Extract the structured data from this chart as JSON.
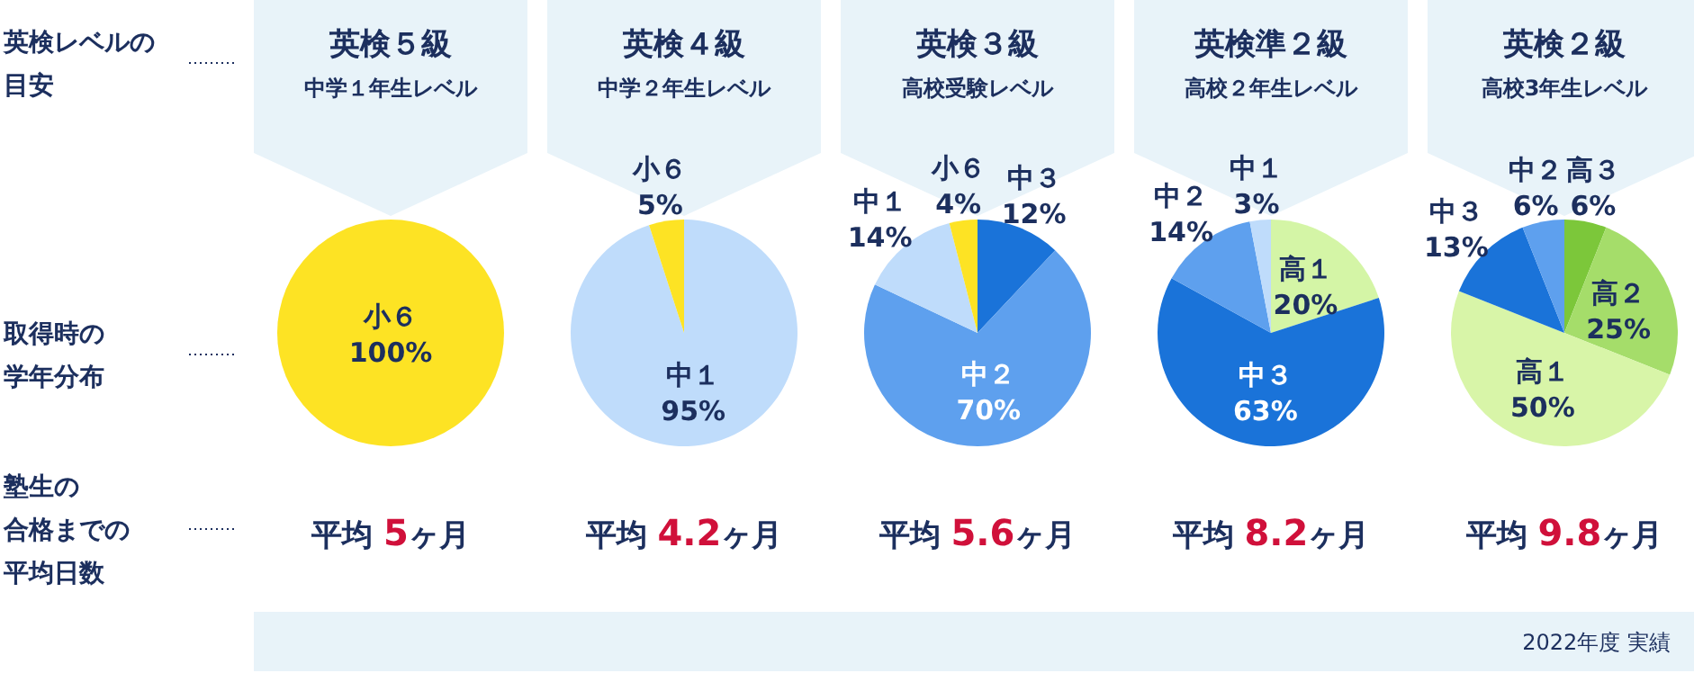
{
  "chart_data": [
    {
      "type": "pie",
      "title": "英検５級",
      "subtitle": "中学１年生レベル",
      "categories": [
        "小６"
      ],
      "values": [
        100
      ],
      "colors": [
        "#fde324"
      ],
      "value_labels": [
        "100%"
      ],
      "annotations": [
        "平均 5ヶ月"
      ]
    },
    {
      "type": "pie",
      "title": "英検４級",
      "subtitle": "中学２年生レベル",
      "categories": [
        "中１",
        "小６"
      ],
      "values": [
        95,
        5
      ],
      "colors": [
        "#bfdcfb",
        "#fde324"
      ],
      "value_labels": [
        "95%",
        "5%"
      ],
      "annotations": [
        "平均 4.2ヶ月"
      ]
    },
    {
      "type": "pie",
      "title": "英検３級",
      "subtitle": "高校受験レベル",
      "categories": [
        "中３",
        "中２",
        "中１",
        "小６"
      ],
      "values": [
        12,
        70,
        14,
        4
      ],
      "colors": [
        "#1a73d9",
        "#5ea0ee",
        "#bfdcfb",
        "#fde324"
      ],
      "value_labels": [
        "12%",
        "70%",
        "14%",
        "4%"
      ],
      "annotations": [
        "平均 5.6ヶ月"
      ]
    },
    {
      "type": "pie",
      "title": "英検準２級",
      "subtitle": "高校２年生レベル",
      "categories": [
        "高１",
        "中３",
        "中２",
        "中１"
      ],
      "values": [
        20,
        63,
        14,
        3
      ],
      "colors": [
        "#d4f5a6",
        "#1a73d9",
        "#5ea0ee",
        "#bfdcfb"
      ],
      "value_labels": [
        "20%",
        "63%",
        "14%",
        "3%"
      ],
      "annotations": [
        "平均 8.2ヶ月"
      ]
    },
    {
      "type": "pie",
      "title": "英検２級",
      "subtitle": "高校3年生レベル",
      "categories": [
        "高３",
        "高２",
        "高１",
        "中３",
        "中２"
      ],
      "values": [
        6,
        25,
        50,
        13,
        6
      ],
      "colors": [
        "#7cc73a",
        "#a5dd6a",
        "#d8f5a8",
        "#1a73d9",
        "#5ea0ee"
      ],
      "value_labels": [
        "6%",
        "25%",
        "50%",
        "13%",
        "6%"
      ],
      "annotations": [
        "平均 9.8ヶ月"
      ]
    },
    {
      "type": "other",
      "annotations": [
        "英検レベルの目安",
        "取得時の学年分布",
        "塾生の合格までの平均日数",
        "2022年度 実績"
      ]
    }
  ]
}
